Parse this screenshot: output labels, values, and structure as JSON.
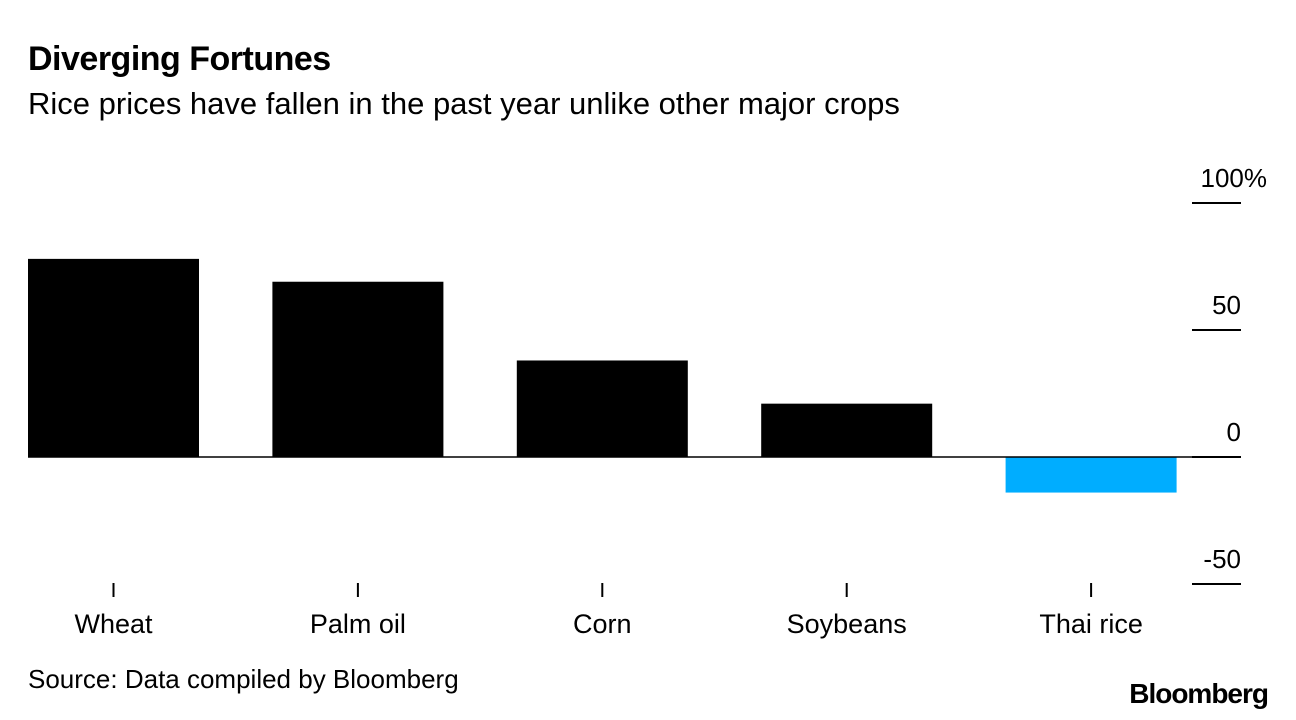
{
  "title": "Diverging Fortunes",
  "subtitle": "Rice prices have fallen in the past year unlike other major crops",
  "source": "Source: Data compiled by Bloomberg",
  "brand": "Bloomberg",
  "chart_data": {
    "type": "bar",
    "categories": [
      "Wheat",
      "Palm oil",
      "Corn",
      "Soybeans",
      "Thai rice"
    ],
    "values": [
      78,
      69,
      38,
      21,
      -14
    ],
    "colors": [
      "#000000",
      "#000000",
      "#000000",
      "#000000",
      "#00adff"
    ],
    "ylim": [
      -50,
      100
    ],
    "yticks": [
      100,
      50,
      0,
      -50
    ],
    "ytick_labels": [
      "100%",
      "50",
      "0",
      "-50"
    ],
    "ylabel": "",
    "xlabel": "",
    "grid": false
  }
}
